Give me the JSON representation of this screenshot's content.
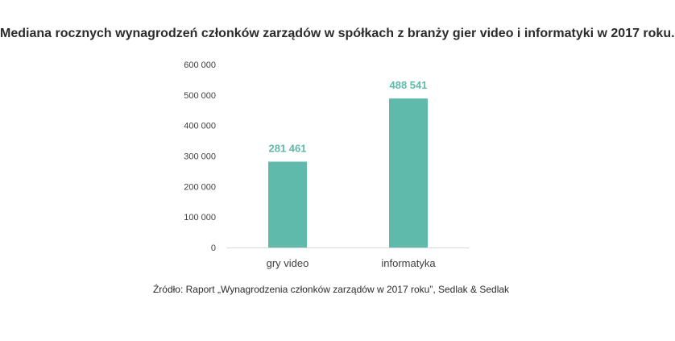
{
  "chart_data": {
    "type": "bar",
    "title": "Mediana rocznych wynagrodzeń członków zarządów w spółkach z branży gier video i informatyki w 2017 roku.",
    "categories": [
      "gry video",
      "informatyka"
    ],
    "values": [
      281461,
      488541
    ],
    "data_labels": [
      "281 461",
      "488 541"
    ],
    "ylim": [
      0,
      600000
    ],
    "yticks": [
      0,
      100000,
      200000,
      300000,
      400000,
      500000,
      600000
    ],
    "ytick_labels": [
      "0",
      "100 000",
      "200 000",
      "300 000",
      "400 000",
      "500 000",
      "600 000"
    ],
    "xlabel": "",
    "ylabel": "",
    "grid": false,
    "bar_color": "#5fbaab",
    "label_color": "#5fbaab",
    "source": "Źródło: Raport „Wynagrodzenia członków zarządów w 2017 roku”, Sedlak & Sedlak"
  }
}
